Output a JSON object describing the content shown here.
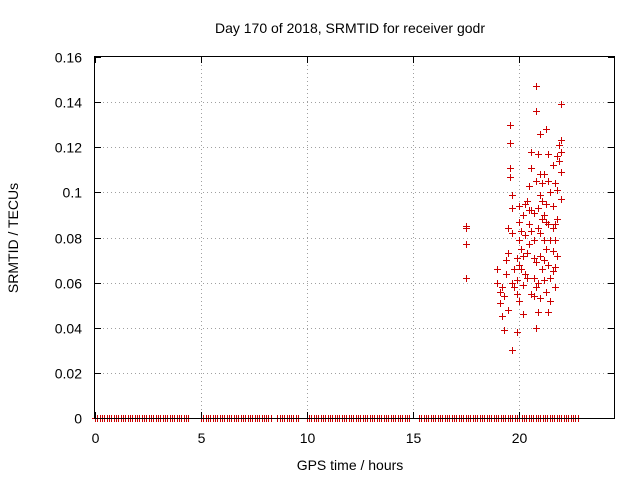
{
  "chart_data": {
    "type": "scatter",
    "title": "Day 170 of 2018, SRMTID for receiver godr",
    "xlabel": "GPS time / hours",
    "ylabel": "SRMTID / TECUs",
    "xlim": [
      0,
      24.5
    ],
    "ylim": [
      0,
      0.16
    ],
    "xticks": [
      0,
      5,
      10,
      15,
      20
    ],
    "xtick_labels": [
      "0",
      "5",
      "10",
      "15",
      "20"
    ],
    "yticks": [
      0,
      0.02,
      0.04,
      0.06,
      0.08,
      0.1,
      0.12,
      0.14,
      0.16
    ],
    "ytick_labels": [
      "0",
      "0.02",
      "0.04",
      "0.06",
      "0.08",
      "0.1",
      "0.12",
      "0.14",
      "0.16"
    ],
    "grid": true,
    "marker": "+",
    "color": "#cc0000",
    "series": [
      {
        "name": "SRMTID",
        "zero_band": {
          "value": 0,
          "x_ranges": [
            [
              0.0,
              4.5
            ],
            [
              5.0,
              8.3
            ],
            [
              8.6,
              9.6
            ],
            [
              10.0,
              14.9
            ],
            [
              15.3,
              22.8
            ]
          ],
          "spacing": 0.11
        },
        "points": [
          [
            17.5,
            0.085
          ],
          [
            17.5,
            0.084
          ],
          [
            17.5,
            0.077
          ],
          [
            17.5,
            0.062
          ],
          [
            19.0,
            0.066
          ],
          [
            19.0,
            0.06
          ],
          [
            19.1,
            0.056
          ],
          [
            19.1,
            0.051
          ],
          [
            19.2,
            0.058
          ],
          [
            19.2,
            0.045
          ],
          [
            19.3,
            0.039
          ],
          [
            19.3,
            0.054
          ],
          [
            19.4,
            0.07
          ],
          [
            19.4,
            0.064
          ],
          [
            19.5,
            0.048
          ],
          [
            19.5,
            0.073
          ],
          [
            19.5,
            0.084
          ],
          [
            19.6,
            0.13
          ],
          [
            19.6,
            0.122
          ],
          [
            19.6,
            0.111
          ],
          [
            19.6,
            0.107
          ],
          [
            19.7,
            0.099
          ],
          [
            19.7,
            0.093
          ],
          [
            19.7,
            0.082
          ],
          [
            19.7,
            0.06
          ],
          [
            19.7,
            0.03
          ],
          [
            19.8,
            0.058
          ],
          [
            19.8,
            0.066
          ],
          [
            19.9,
            0.071
          ],
          [
            19.9,
            0.061
          ],
          [
            19.9,
            0.055
          ],
          [
            19.9,
            0.038
          ],
          [
            20.0,
            0.079
          ],
          [
            20.0,
            0.087
          ],
          [
            20.0,
            0.094
          ],
          [
            20.0,
            0.068
          ],
          [
            20.0,
            0.052
          ],
          [
            20.1,
            0.066
          ],
          [
            20.1,
            0.075
          ],
          [
            20.1,
            0.083
          ],
          [
            20.2,
            0.09
          ],
          [
            20.2,
            0.059
          ],
          [
            20.2,
            0.072
          ],
          [
            20.2,
            0.046
          ],
          [
            20.3,
            0.064
          ],
          [
            20.3,
            0.095
          ],
          [
            20.3,
            0.081
          ],
          [
            20.4,
            0.096
          ],
          [
            20.4,
            0.073
          ],
          [
            20.4,
            0.062
          ],
          [
            20.5,
            0.086
          ],
          [
            20.5,
            0.092
          ],
          [
            20.5,
            0.077
          ],
          [
            20.5,
            0.103
          ],
          [
            20.6,
            0.111
          ],
          [
            20.6,
            0.118
          ],
          [
            20.6,
            0.092
          ],
          [
            20.6,
            0.083
          ],
          [
            20.6,
            0.055
          ],
          [
            20.7,
            0.054
          ],
          [
            20.7,
            0.062
          ],
          [
            20.7,
            0.071
          ],
          [
            20.7,
            0.079
          ],
          [
            20.7,
            0.091
          ],
          [
            20.8,
            0.147
          ],
          [
            20.8,
            0.136
          ],
          [
            20.8,
            0.105
          ],
          [
            20.8,
            0.069
          ],
          [
            20.8,
            0.058
          ],
          [
            20.8,
            0.04
          ],
          [
            20.9,
            0.047
          ],
          [
            20.9,
            0.06
          ],
          [
            20.9,
            0.084
          ],
          [
            20.9,
            0.093
          ],
          [
            20.9,
            0.117
          ],
          [
            21.0,
            0.126
          ],
          [
            21.0,
            0.108
          ],
          [
            21.0,
            0.099
          ],
          [
            21.0,
            0.082
          ],
          [
            21.0,
            0.072
          ],
          [
            21.0,
            0.053
          ],
          [
            21.1,
            0.088
          ],
          [
            21.1,
            0.096
          ],
          [
            21.1,
            0.104
          ],
          [
            21.1,
            0.066
          ],
          [
            21.2,
            0.079
          ],
          [
            21.2,
            0.108
          ],
          [
            21.2,
            0.09
          ],
          [
            21.2,
            0.07
          ],
          [
            21.2,
            0.061
          ],
          [
            21.3,
            0.128
          ],
          [
            21.3,
            0.095
          ],
          [
            21.3,
            0.087
          ],
          [
            21.3,
            0.075
          ],
          [
            21.3,
            0.056
          ],
          [
            21.4,
            0.117
          ],
          [
            21.4,
            0.105
          ],
          [
            21.4,
            0.086
          ],
          [
            21.4,
            0.068
          ],
          [
            21.4,
            0.047
          ],
          [
            21.5,
            0.1
          ],
          [
            21.5,
            0.079
          ],
          [
            21.5,
            0.062
          ],
          [
            21.5,
            0.052
          ],
          [
            21.6,
            0.112
          ],
          [
            21.6,
            0.094
          ],
          [
            21.6,
            0.084
          ],
          [
            21.6,
            0.074
          ],
          [
            21.6,
            0.065
          ],
          [
            21.7,
            0.104
          ],
          [
            21.7,
            0.086
          ],
          [
            21.7,
            0.079
          ],
          [
            21.7,
            0.067
          ],
          [
            21.7,
            0.058
          ],
          [
            21.8,
            0.116
          ],
          [
            21.8,
            0.101
          ],
          [
            21.8,
            0.088
          ],
          [
            21.8,
            0.072
          ],
          [
            21.9,
            0.121
          ],
          [
            21.9,
            0.114
          ],
          [
            22.0,
            0.139
          ],
          [
            22.0,
            0.123
          ],
          [
            22.0,
            0.118
          ],
          [
            22.0,
            0.109
          ],
          [
            22.0,
            0.097
          ]
        ]
      }
    ]
  }
}
